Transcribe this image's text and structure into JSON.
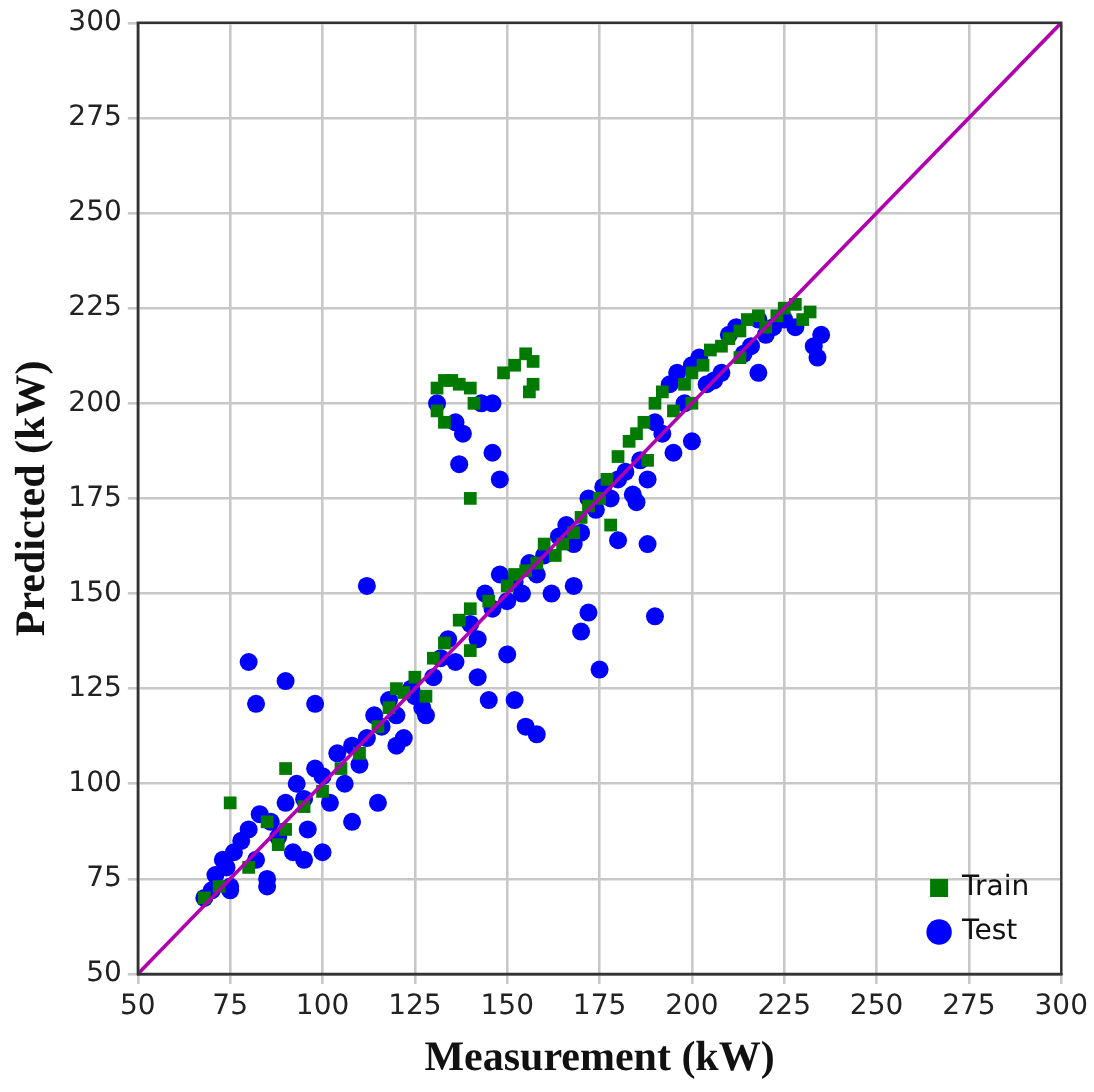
{
  "chart_data": {
    "type": "scatter",
    "xlabel": "Measurement (kW)",
    "ylabel": "Predicted (kW)",
    "xlim": [
      50,
      300
    ],
    "ylim": [
      50,
      300
    ],
    "xticks": [
      50,
      75,
      100,
      125,
      150,
      175,
      200,
      225,
      250,
      275,
      300
    ],
    "yticks": [
      50,
      75,
      100,
      125,
      150,
      175,
      200,
      225,
      250,
      275,
      300
    ],
    "grid": true,
    "legend": "bottom right",
    "series": [
      {
        "type": "line",
        "color": "#b000b0",
        "marker": "none",
        "line_style": "solid",
        "x": [
          50,
          300
        ],
        "values": [
          50,
          300
        ]
      },
      {
        "name": "Train",
        "color": "#007a00",
        "marker": "square",
        "x": [
          131,
          133,
          135,
          137,
          140,
          131,
          133,
          141,
          140,
          149,
          152,
          155,
          157,
          157,
          156,
          68,
          72,
          80,
          85,
          88,
          90,
          95,
          100,
          105,
          110,
          115,
          118,
          120,
          122,
          125,
          128,
          130,
          133,
          137,
          140,
          145,
          150,
          152,
          155,
          158,
          160,
          163,
          165,
          168,
          170,
          172,
          175,
          177,
          180,
          183,
          185,
          187,
          190,
          192,
          195,
          198,
          200,
          203,
          205,
          208,
          210,
          213,
          215,
          218,
          220,
          223,
          225,
          228,
          230,
          232,
          213,
          200,
          188,
          75,
          90,
          178,
          140
        ],
        "values": [
          204,
          206,
          206,
          205,
          204,
          198,
          195,
          200,
          175,
          208,
          210,
          213,
          211,
          205,
          203,
          70,
          73,
          78,
          90,
          84,
          88,
          94,
          98,
          104,
          108,
          115,
          120,
          125,
          124,
          128,
          123,
          133,
          137,
          143,
          146,
          148,
          152,
          155,
          156,
          158,
          163,
          160,
          163,
          166,
          170,
          173,
          175,
          180,
          186,
          190,
          192,
          195,
          200,
          203,
          198,
          205,
          208,
          210,
          214,
          215,
          217,
          219,
          222,
          223,
          220,
          223,
          225,
          226,
          222,
          224,
          212,
          200,
          185,
          95,
          104,
          168,
          135
        ]
      },
      {
        "name": "Test",
        "color": "#0000ff",
        "marker": "circle",
        "x": [
          68,
          70,
          71,
          73,
          74,
          75,
          76,
          78,
          80,
          82,
          83,
          85,
          86,
          88,
          90,
          92,
          93,
          95,
          96,
          98,
          100,
          102,
          104,
          106,
          108,
          110,
          112,
          114,
          116,
          118,
          120,
          122,
          124,
          125,
          127,
          130,
          132,
          134,
          136,
          140,
          142,
          144,
          146,
          148,
          150,
          152,
          154,
          156,
          158,
          160,
          162,
          164,
          166,
          168,
          170,
          172,
          174,
          176,
          178,
          180,
          182,
          184,
          186,
          188,
          190,
          192,
          194,
          196,
          198,
          200,
          202,
          204,
          206,
          208,
          210,
          212,
          214,
          216,
          218,
          220,
          222,
          225,
          228,
          233,
          235,
          234,
          80,
          82,
          90,
          98,
          112,
          75,
          85,
          95,
          100,
          108,
          115,
          120,
          128,
          131,
          136,
          138,
          143,
          146,
          137,
          146,
          148,
          150,
          145,
          152,
          155,
          158,
          142,
          170,
          172,
          175,
          168,
          180,
          188,
          190,
          195,
          200,
          218,
          185
        ],
        "values": [
          70,
          72,
          76,
          80,
          78,
          72,
          82,
          85,
          88,
          80,
          92,
          75,
          90,
          86,
          95,
          82,
          100,
          96,
          88,
          104,
          102,
          95,
          108,
          100,
          110,
          105,
          112,
          118,
          115,
          122,
          118,
          112,
          125,
          123,
          120,
          128,
          133,
          138,
          132,
          142,
          138,
          150,
          146,
          155,
          148,
          153,
          150,
          158,
          155,
          160,
          150,
          165,
          168,
          163,
          166,
          175,
          172,
          178,
          175,
          180,
          182,
          176,
          185,
          180,
          195,
          192,
          205,
          208,
          200,
          210,
          212,
          205,
          206,
          208,
          218,
          220,
          213,
          215,
          222,
          218,
          220,
          222,
          220,
          215,
          218,
          212,
          132,
          121,
          127,
          121,
          152,
          73,
          73,
          80,
          82,
          90,
          95,
          110,
          118,
          200,
          195,
          192,
          200,
          200,
          184,
          187,
          180,
          134,
          122,
          122,
          115,
          113,
          128,
          140,
          145,
          130,
          152,
          164,
          163,
          144,
          187,
          190,
          208,
          174
        ]
      }
    ]
  }
}
